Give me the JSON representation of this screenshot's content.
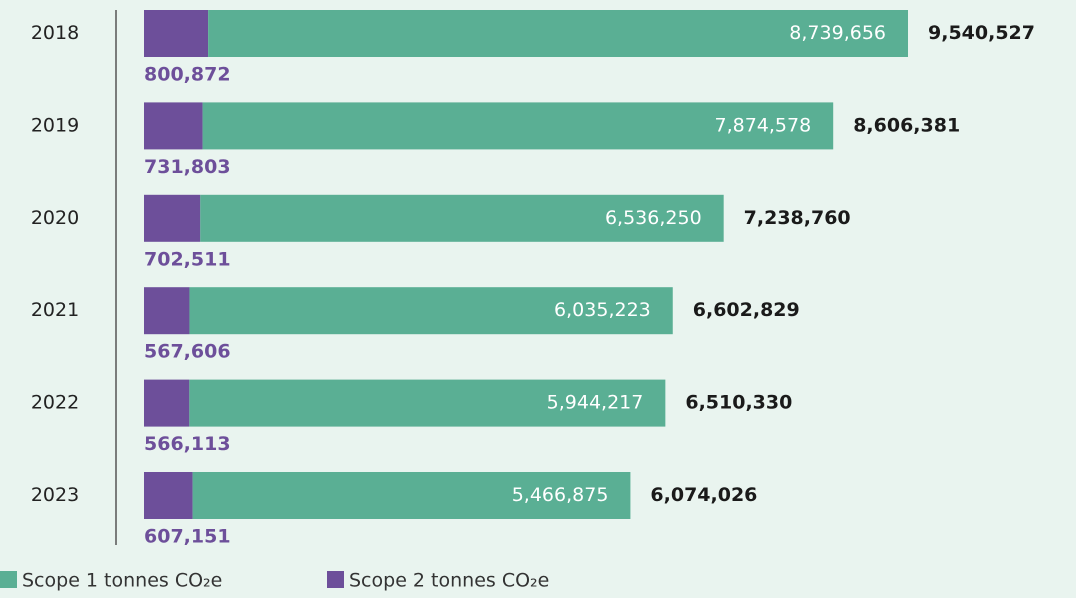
{
  "chart_data": {
    "type": "stacked-bar-horizontal",
    "categories": [
      "2018",
      "2019",
      "2020",
      "2021",
      "2022",
      "2023"
    ],
    "series": [
      {
        "name": "Scope 1 tonnes CO₂e",
        "color": "#5aaf94",
        "values": [
          8739656,
          7874578,
          6536250,
          6035223,
          5944217,
          5466875
        ],
        "value_labels": [
          "8,739,656",
          "7,874,578",
          "6,536,250",
          "6,035,223",
          "5,944,217",
          "5,466,875"
        ]
      },
      {
        "name": "Scope 2 tonnes CO₂e",
        "color": "#6d4f9a",
        "values": [
          800872,
          731803,
          702511,
          567606,
          566113,
          607151
        ],
        "value_labels": [
          "800,872",
          "731,803",
          "702,511",
          "567,606",
          "566,113",
          "607,151"
        ]
      }
    ],
    "totals": {
      "values": [
        9540527,
        8606381,
        7238760,
        6602829,
        6510330,
        6074026
      ],
      "value_labels": [
        "9,540,527",
        "8,606,381",
        "7,238,760",
        "6,602,829",
        "6,510,330",
        "6,074,026"
      ]
    }
  }
}
